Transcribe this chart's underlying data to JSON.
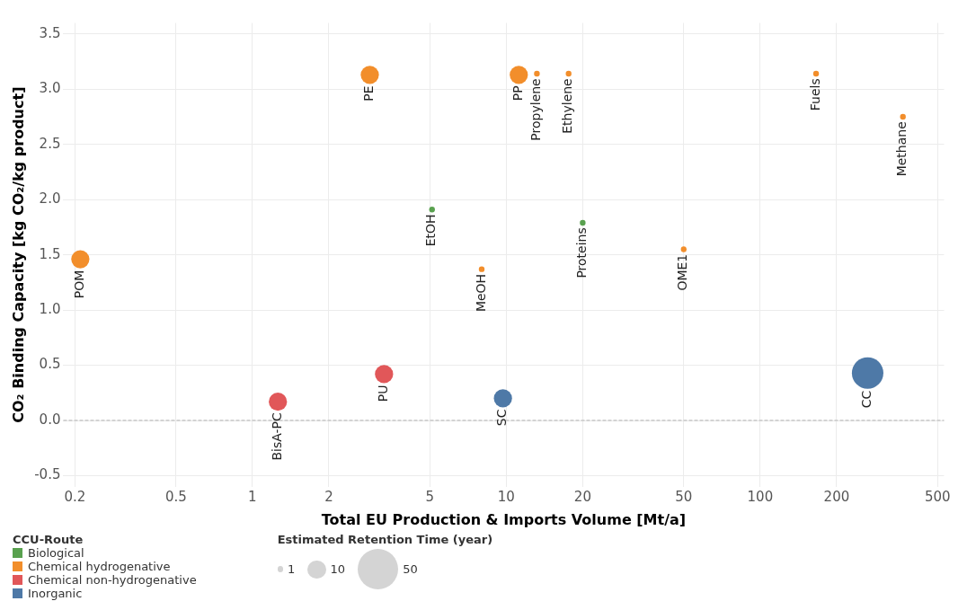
{
  "chart_data": {
    "type": "bubble",
    "xlabel": "Total EU Production & Imports Volume [Mt/a]",
    "ylabel": "CO₂ Binding Capacity [kg CO₂/kg product]",
    "legend_title": "CCU-Route",
    "annotations": [
      "Estimated Retention Time (year)"
    ],
    "log": "x",
    "grid": true,
    "legend": "bottom left",
    "marker": "circle",
    "size_legend": [
      1,
      10,
      50
    ],
    "xlim": [
      0.18,
      530
    ],
    "xticks": [
      0.2,
      0.5,
      1,
      2,
      5,
      10,
      20,
      50,
      100,
      200,
      500
    ],
    "ylim": [
      -0.6,
      3.6
    ],
    "yticks": [
      -0.5,
      {
        "value": 0,
        "label": "0.0"
      },
      0.5,
      {
        "value": 1,
        "label": "1.0"
      },
      1.5,
      {
        "value": 2,
        "label": "2.0"
      },
      2.5,
      {
        "value": 3,
        "label": "3.0"
      },
      3.5
    ],
    "ref_lines": [
      {
        "axis": "y",
        "value": 0,
        "color": "#c8c8c8",
        "line_style": "dashed"
      }
    ],
    "series": [
      {
        "name": "Biological",
        "color": "#59a14f",
        "x": [
          5.1,
          20
        ],
        "values": [
          1.91,
          1.79
        ],
        "sizes": [
          1,
          1
        ],
        "value_labels": [
          "EtOH",
          "Proteins"
        ]
      },
      {
        "name": "Chemical hydrogenative",
        "color": "#f28e2b",
        "x": [
          0.21,
          2.9,
          11.2,
          13.2,
          17.6,
          8.0,
          50,
          166,
          365
        ],
        "values": [
          1.46,
          3.13,
          3.13,
          3.14,
          3.14,
          1.37,
          1.55,
          3.14,
          2.75
        ],
        "sizes": [
          10,
          10,
          10,
          1,
          1,
          1,
          1,
          1,
          1
        ],
        "value_labels": [
          "POM",
          "PE",
          "PP",
          "Propylene",
          "Ethylene",
          "MeOH",
          "OME1",
          "Fuels",
          "Methane"
        ]
      },
      {
        "name": "Chemical non-hydrogenative",
        "color": "#e15759",
        "x": [
          1.26,
          3.3
        ],
        "values": [
          0.17,
          0.42
        ],
        "sizes": [
          10,
          10
        ],
        "value_labels": [
          "BisA-PC",
          "PU"
        ]
      },
      {
        "name": "Inorganic",
        "color": "#4e79a7",
        "x": [
          9.7,
          265
        ],
        "values": [
          0.2,
          0.43
        ],
        "sizes": [
          10,
          30
        ],
        "value_labels": [
          "SC",
          "CC"
        ]
      }
    ]
  }
}
